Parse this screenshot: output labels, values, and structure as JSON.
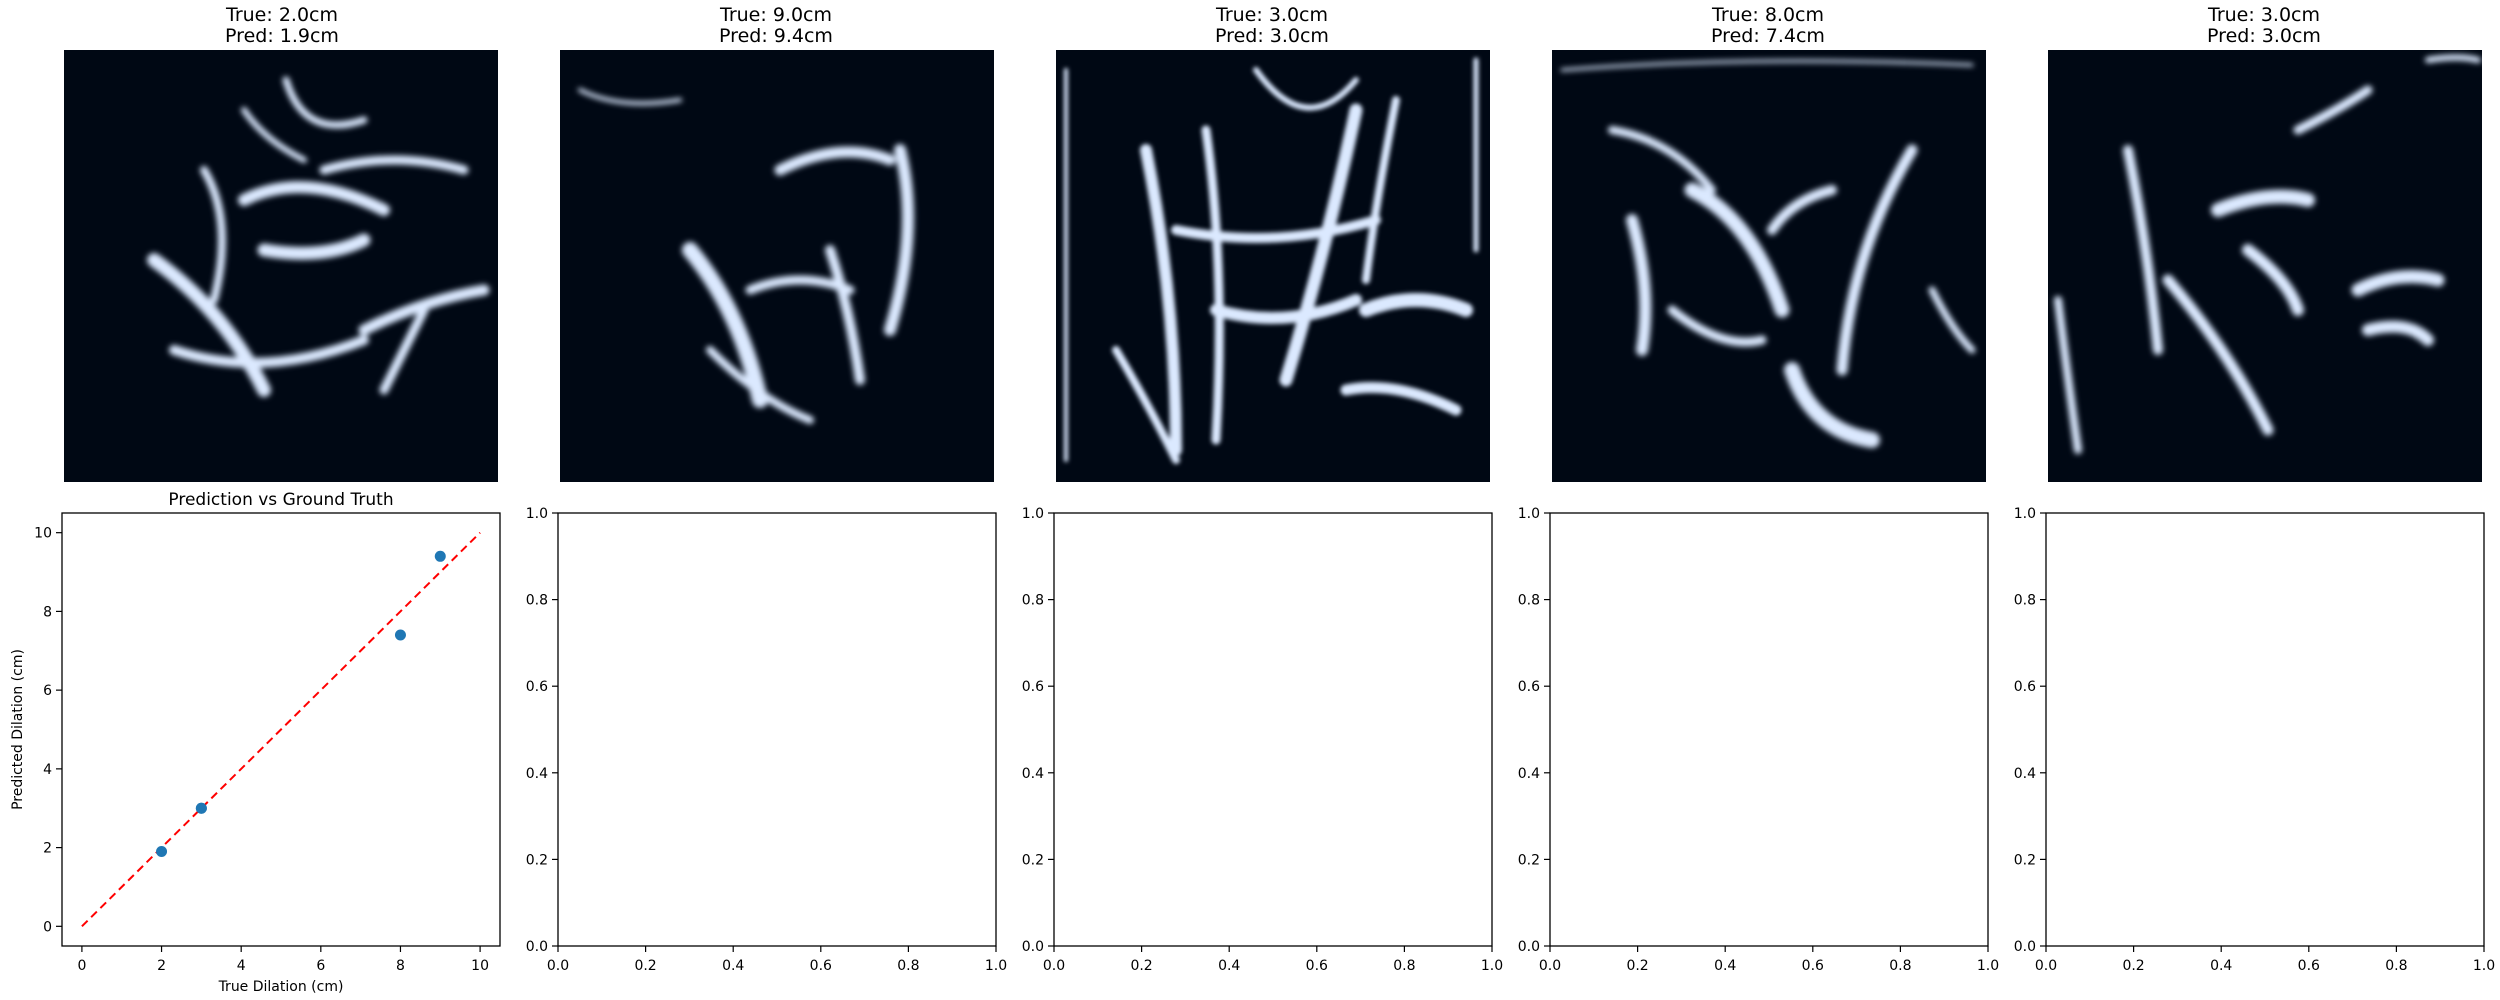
{
  "panels": [
    {
      "true_label": "True: 2.0cm",
      "pred_label": "Pred: 1.9cm"
    },
    {
      "true_label": "True: 9.0cm",
      "pred_label": "Pred: 9.4cm"
    },
    {
      "true_label": "True: 3.0cm",
      "pred_label": "Pred: 3.0cm"
    },
    {
      "true_label": "True: 8.0cm",
      "pred_label": "Pred: 7.4cm"
    },
    {
      "true_label": "True: 3.0cm",
      "pred_label": "Pred: 3.0cm"
    }
  ],
  "colors": {
    "image_bg": "#000814",
    "image_fg": "#dbe9ff",
    "point": "#1f77b4",
    "diagonal": "#ff0000"
  },
  "chart_data": [
    {
      "type": "scatter",
      "title": "Prediction vs Ground Truth",
      "xlabel": "True Dilation (cm)",
      "ylabel": "Predicted Dilation (cm)",
      "xlim": [
        -0.5,
        10.5
      ],
      "ylim": [
        -0.5,
        10.5
      ],
      "xticks": [
        "0",
        "2",
        "4",
        "6",
        "8",
        "10"
      ],
      "yticks": [
        "0",
        "2",
        "4",
        "6",
        "8",
        "10"
      ],
      "series": [
        {
          "x": [
            2.0,
            9.0,
            3.0,
            8.0,
            3.0
          ],
          "y": [
            1.9,
            9.4,
            3.0,
            7.4,
            3.0
          ]
        }
      ],
      "reference_line": {
        "x": [
          0,
          10
        ],
        "y": [
          0,
          10
        ],
        "style": "dashed"
      },
      "grid": false
    },
    {
      "type": "scatter",
      "xlim": [
        0,
        1
      ],
      "ylim": [
        0,
        1
      ],
      "xticks": [
        "0.0",
        "0.2",
        "0.4",
        "0.6",
        "0.8",
        "1.0"
      ],
      "yticks": [
        "0.0",
        "0.2",
        "0.4",
        "0.6",
        "0.8",
        "1.0"
      ],
      "series": []
    },
    {
      "type": "scatter",
      "xlim": [
        0,
        1
      ],
      "ylim": [
        0,
        1
      ],
      "xticks": [
        "0.0",
        "0.2",
        "0.4",
        "0.6",
        "0.8",
        "1.0"
      ],
      "yticks": [
        "0.0",
        "0.2",
        "0.4",
        "0.6",
        "0.8",
        "1.0"
      ],
      "series": []
    },
    {
      "type": "scatter",
      "xlim": [
        0,
        1
      ],
      "ylim": [
        0,
        1
      ],
      "xticks": [
        "0.0",
        "0.2",
        "0.4",
        "0.6",
        "0.8",
        "1.0"
      ],
      "yticks": [
        "0.0",
        "0.2",
        "0.4",
        "0.6",
        "0.8",
        "1.0"
      ],
      "series": []
    },
    {
      "type": "scatter",
      "xlim": [
        0,
        1
      ],
      "ylim": [
        0,
        1
      ],
      "xticks": [
        "0.0",
        "0.2",
        "0.4",
        "0.6",
        "0.8",
        "1.0"
      ],
      "yticks": [
        "0.0",
        "0.2",
        "0.4",
        "0.6",
        "0.8",
        "1.0"
      ],
      "series": []
    }
  ]
}
